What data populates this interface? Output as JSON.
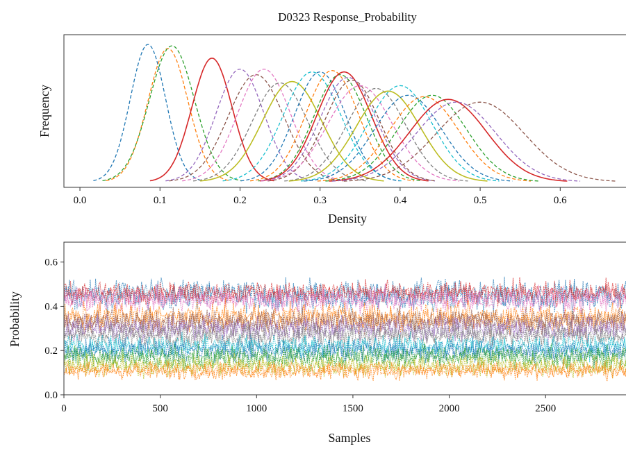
{
  "title": "D0323 Response_Probability",
  "chart_data": [
    {
      "type": "line",
      "panel": "top",
      "title": "D0323 Response_Probability",
      "xlabel": "Density",
      "ylabel": "Frequency",
      "xlim": [
        -0.02,
        0.69
      ],
      "xticks": [
        0.0,
        0.1,
        0.2,
        0.3,
        0.4,
        0.5,
        0.6
      ],
      "xtick_labels": [
        "0.0",
        "0.1",
        "0.2",
        "0.3",
        "0.4",
        "0.5",
        "0.6"
      ],
      "y_ticks_shown": false,
      "grid": false,
      "legend": false,
      "line_style": "dashed and solid",
      "colors": [
        "#1f77b4",
        "#ff7f0e",
        "#2ca02c",
        "#d62728",
        "#9467bd",
        "#8c564b",
        "#e377c2",
        "#7f7f7f",
        "#bcbd22",
        "#17becf"
      ],
      "series_peaks": [
        0.085,
        0.11,
        0.115,
        0.165,
        0.2,
        0.22,
        0.23,
        0.25,
        0.265,
        0.29,
        0.3,
        0.315,
        0.325,
        0.33,
        0.335,
        0.34,
        0.35,
        0.37,
        0.385,
        0.4,
        0.41,
        0.43,
        0.44,
        0.46,
        0.47,
        0.5
      ],
      "series_widths": [
        0.022,
        0.025,
        0.028,
        0.025,
        0.03,
        0.035,
        0.033,
        0.035,
        0.037,
        0.036,
        0.032,
        0.033,
        0.033,
        0.034,
        0.035,
        0.034,
        0.04,
        0.037,
        0.04,
        0.04,
        0.042,
        0.043,
        0.043,
        0.048,
        0.05,
        0.055
      ],
      "series_relative_heights": [
        1.0,
        0.97,
        0.99,
        0.9,
        0.82,
        0.78,
        0.82,
        0.72,
        0.73,
        0.8,
        0.8,
        0.81,
        0.78,
        0.8,
        0.76,
        0.74,
        0.7,
        0.68,
        0.66,
        0.7,
        0.63,
        0.62,
        0.63,
        0.6,
        0.58,
        0.58
      ]
    },
    {
      "type": "line",
      "panel": "bottom",
      "xlabel": "Samples",
      "ylabel": "Probability",
      "xlim": [
        0,
        2950
      ],
      "ylim": [
        0,
        0.69
      ],
      "xticks": [
        0,
        500,
        1000,
        1500,
        2000,
        2500
      ],
      "xtick_labels": [
        "0",
        "500",
        "1000",
        "1500",
        "2000",
        "2500"
      ],
      "yticks": [
        0.0,
        0.2,
        0.4,
        0.6
      ],
      "ytick_labels": [
        "0.0",
        "0.2",
        "0.4",
        "0.6"
      ],
      "grid": false,
      "legend": false,
      "line_style": "dotted",
      "trace_bands": [
        {
          "color": "#1f77b4",
          "center": 0.45,
          "spread": 0.06
        },
        {
          "color": "#d62728",
          "center": 0.46,
          "spread": 0.045
        },
        {
          "color": "#e377c2",
          "center": 0.43,
          "spread": 0.05
        },
        {
          "color": "#ff7f0e",
          "center": 0.35,
          "spread": 0.055
        },
        {
          "color": "#8c564b",
          "center": 0.33,
          "spread": 0.05
        },
        {
          "color": "#9467bd",
          "center": 0.3,
          "spread": 0.05
        },
        {
          "color": "#7f7f7f",
          "center": 0.27,
          "spread": 0.05
        },
        {
          "color": "#17becf",
          "center": 0.22,
          "spread": 0.045
        },
        {
          "color": "#1f77b4",
          "center": 0.2,
          "spread": 0.045
        },
        {
          "color": "#2ca02c",
          "center": 0.17,
          "spread": 0.045
        },
        {
          "color": "#bcbd22",
          "center": 0.13,
          "spread": 0.04
        },
        {
          "color": "#ff7f0e",
          "center": 0.11,
          "spread": 0.035
        }
      ]
    }
  ]
}
